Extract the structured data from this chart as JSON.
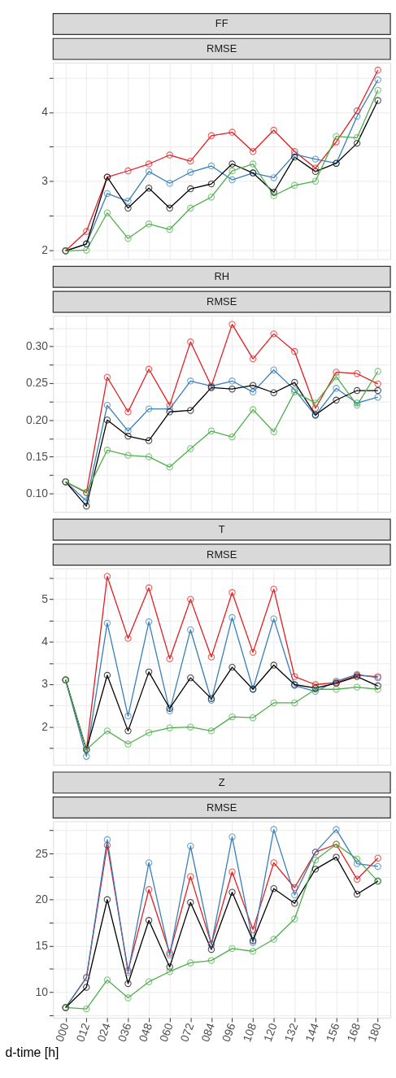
{
  "chart_data": [
    {
      "type": "line",
      "title": "FF",
      "subtitle": "RMSE",
      "marker": "circle",
      "grid": true,
      "tick_labels": "y",
      "categories": [
        "000",
        "012",
        "024",
        "036",
        "048",
        "060",
        "072",
        "084",
        "096",
        "108",
        "120",
        "132",
        "144",
        "156",
        "168",
        "180"
      ],
      "ylim": [
        1.87,
        4.72
      ],
      "yticks": [
        2,
        {
          "value": 2.5,
          "label": null
        },
        3,
        {
          "value": 3.5,
          "label": null
        },
        4,
        {
          "value": 4.5,
          "label": null
        }
      ],
      "series": [
        {
          "color": "#e41a1c",
          "values": [
            1.99,
            2.27,
            3.06,
            3.15,
            3.25,
            3.38,
            3.29,
            3.66,
            3.71,
            3.43,
            3.74,
            3.43,
            3.19,
            3.57,
            4.02,
            4.61
          ]
        },
        {
          "color": "#377eb8",
          "values": [
            1.99,
            2.09,
            2.82,
            2.71,
            3.14,
            2.97,
            3.13,
            3.22,
            3.02,
            3.12,
            3.05,
            3.39,
            3.32,
            3.26,
            3.94,
            4.47
          ]
        },
        {
          "color": "#000000",
          "values": [
            1.99,
            2.09,
            3.06,
            2.61,
            2.9,
            2.61,
            2.89,
            2.96,
            3.25,
            3.12,
            2.84,
            3.35,
            3.14,
            3.26,
            3.55,
            4.17
          ]
        },
        {
          "color": "#4daf4a",
          "values": [
            1.99,
            2.0,
            2.54,
            2.17,
            2.38,
            2.3,
            2.61,
            2.77,
            3.15,
            3.25,
            2.79,
            2.94,
            3.0,
            3.65,
            3.63,
            4.32
          ]
        }
      ]
    },
    {
      "type": "line",
      "title": "RH",
      "subtitle": "RMSE",
      "marker": "circle",
      "grid": true,
      "tick_labels": "y",
      "categories": [
        "000",
        "012",
        "024",
        "036",
        "048",
        "060",
        "072",
        "084",
        "096",
        "108",
        "120",
        "132",
        "144",
        "156",
        "168",
        "180"
      ],
      "ylim": [
        0.075,
        0.342
      ],
      "yticks": [
        {
          "value": 0.1,
          "label": "0.10"
        },
        {
          "value": 0.125,
          "label": null
        },
        {
          "value": 0.15,
          "label": "0.15"
        },
        {
          "value": 0.175,
          "label": null
        },
        {
          "value": 0.2,
          "label": "0.20"
        },
        {
          "value": 0.225,
          "label": null
        },
        {
          "value": 0.25,
          "label": "0.25"
        },
        {
          "value": 0.275,
          "label": null
        },
        {
          "value": 0.3,
          "label": "0.30"
        },
        {
          "value": 0.325,
          "label": null
        }
      ],
      "series": [
        {
          "color": "#e41a1c",
          "values": [
            0.116,
            0.101,
            0.258,
            0.211,
            0.269,
            0.22,
            0.306,
            0.246,
            0.33,
            0.283,
            0.317,
            0.293,
            0.216,
            0.265,
            0.263,
            0.249
          ]
        },
        {
          "color": "#377eb8",
          "values": [
            0.116,
            0.09,
            0.22,
            0.185,
            0.215,
            0.215,
            0.253,
            0.246,
            0.253,
            0.238,
            0.268,
            0.241,
            0.206,
            0.243,
            0.223,
            0.231
          ]
        },
        {
          "color": "#000000",
          "values": [
            0.116,
            0.083,
            0.2,
            0.178,
            0.172,
            0.211,
            0.213,
            0.244,
            0.242,
            0.247,
            0.237,
            0.251,
            0.207,
            0.227,
            0.24,
            0.24
          ]
        },
        {
          "color": "#4daf4a",
          "values": [
            0.116,
            0.102,
            0.159,
            0.152,
            0.15,
            0.136,
            0.161,
            0.185,
            0.177,
            0.214,
            0.184,
            0.238,
            0.223,
            0.259,
            0.22,
            0.266
          ]
        }
      ]
    },
    {
      "type": "line",
      "title": "T",
      "subtitle": "RMSE",
      "marker": "circle",
      "grid": true,
      "tick_labels": "y",
      "categories": [
        "000",
        "012",
        "024",
        "036",
        "048",
        "060",
        "072",
        "084",
        "096",
        "108",
        "120",
        "132",
        "144",
        "156",
        "168",
        "180"
      ],
      "ylim": [
        1.1,
        5.73
      ],
      "yticks": [
        {
          "value": 1.5,
          "label": null
        },
        2,
        {
          "value": 2.5,
          "label": null
        },
        3,
        {
          "value": 3.5,
          "label": null
        },
        4,
        {
          "value": 4.5,
          "label": null
        },
        5,
        {
          "value": 5.5,
          "label": null
        }
      ],
      "series": [
        {
          "color": "#e41a1c",
          "values": [
            3.1,
            1.45,
            5.54,
            4.08,
            5.27,
            3.6,
            5.0,
            3.64,
            5.16,
            3.75,
            5.24,
            3.18,
            2.99,
            3.04,
            3.21,
            3.18
          ]
        },
        {
          "color": "#377eb8",
          "values": [
            3.1,
            1.3,
            4.44,
            2.25,
            4.47,
            2.37,
            4.28,
            2.62,
            4.57,
            2.89,
            4.54,
            2.97,
            2.83,
            3.07,
            3.23,
            3.15
          ]
        },
        {
          "color": "#000000",
          "values": [
            3.1,
            1.46,
            3.21,
            1.9,
            3.29,
            2.43,
            3.15,
            2.66,
            3.4,
            2.88,
            3.45,
            2.99,
            2.91,
            3.02,
            3.18,
            2.96
          ]
        },
        {
          "color": "#4daf4a",
          "values": [
            3.1,
            1.46,
            1.9,
            1.59,
            1.86,
            1.97,
            1.99,
            1.9,
            2.23,
            2.21,
            2.56,
            2.56,
            2.88,
            2.88,
            2.93,
            2.88
          ]
        }
      ]
    },
    {
      "type": "line",
      "title": "Z",
      "subtitle": "RMSE",
      "marker": "circle",
      "grid": true,
      "xlabel": "d-time [h]",
      "categories": [
        "000",
        "012",
        "024",
        "036",
        "048",
        "060",
        "072",
        "084",
        "096",
        "108",
        "120",
        "132",
        "144",
        "156",
        "168",
        "180"
      ],
      "ylim": [
        7.2,
        28.5
      ],
      "yticks": [
        {
          "value": 7.5,
          "label": null
        },
        10,
        {
          "value": 12.5,
          "label": null
        },
        15,
        {
          "value": 17.5,
          "label": null
        },
        20,
        {
          "value": 22.5,
          "label": null
        },
        25,
        {
          "value": 27.5,
          "label": null
        }
      ],
      "series": [
        {
          "color": "#e41a1c",
          "values": [
            8.3,
            11.55,
            25.9,
            12.3,
            21.1,
            14.2,
            22.5,
            15.2,
            23.0,
            16.75,
            24.0,
            21.3,
            25.15,
            26.0,
            22.2,
            24.5
          ]
        },
        {
          "color": "#377eb8",
          "values": [
            8.3,
            11.55,
            26.5,
            12.1,
            24.0,
            14.0,
            25.8,
            15.1,
            26.8,
            15.35,
            27.6,
            20.5,
            25.15,
            27.6,
            23.9,
            23.6
          ]
        },
        {
          "color": "#000000",
          "values": [
            8.3,
            10.5,
            20.0,
            10.9,
            17.75,
            12.7,
            19.7,
            14.6,
            20.8,
            15.55,
            21.2,
            19.6,
            23.3,
            24.6,
            20.6,
            22.0
          ]
        },
        {
          "color": "#4daf4a",
          "values": [
            8.3,
            8.15,
            11.3,
            9.35,
            11.1,
            12.2,
            13.15,
            13.4,
            14.7,
            14.4,
            15.7,
            17.9,
            24.3,
            26.0,
            24.4,
            22.0
          ]
        }
      ]
    }
  ]
}
